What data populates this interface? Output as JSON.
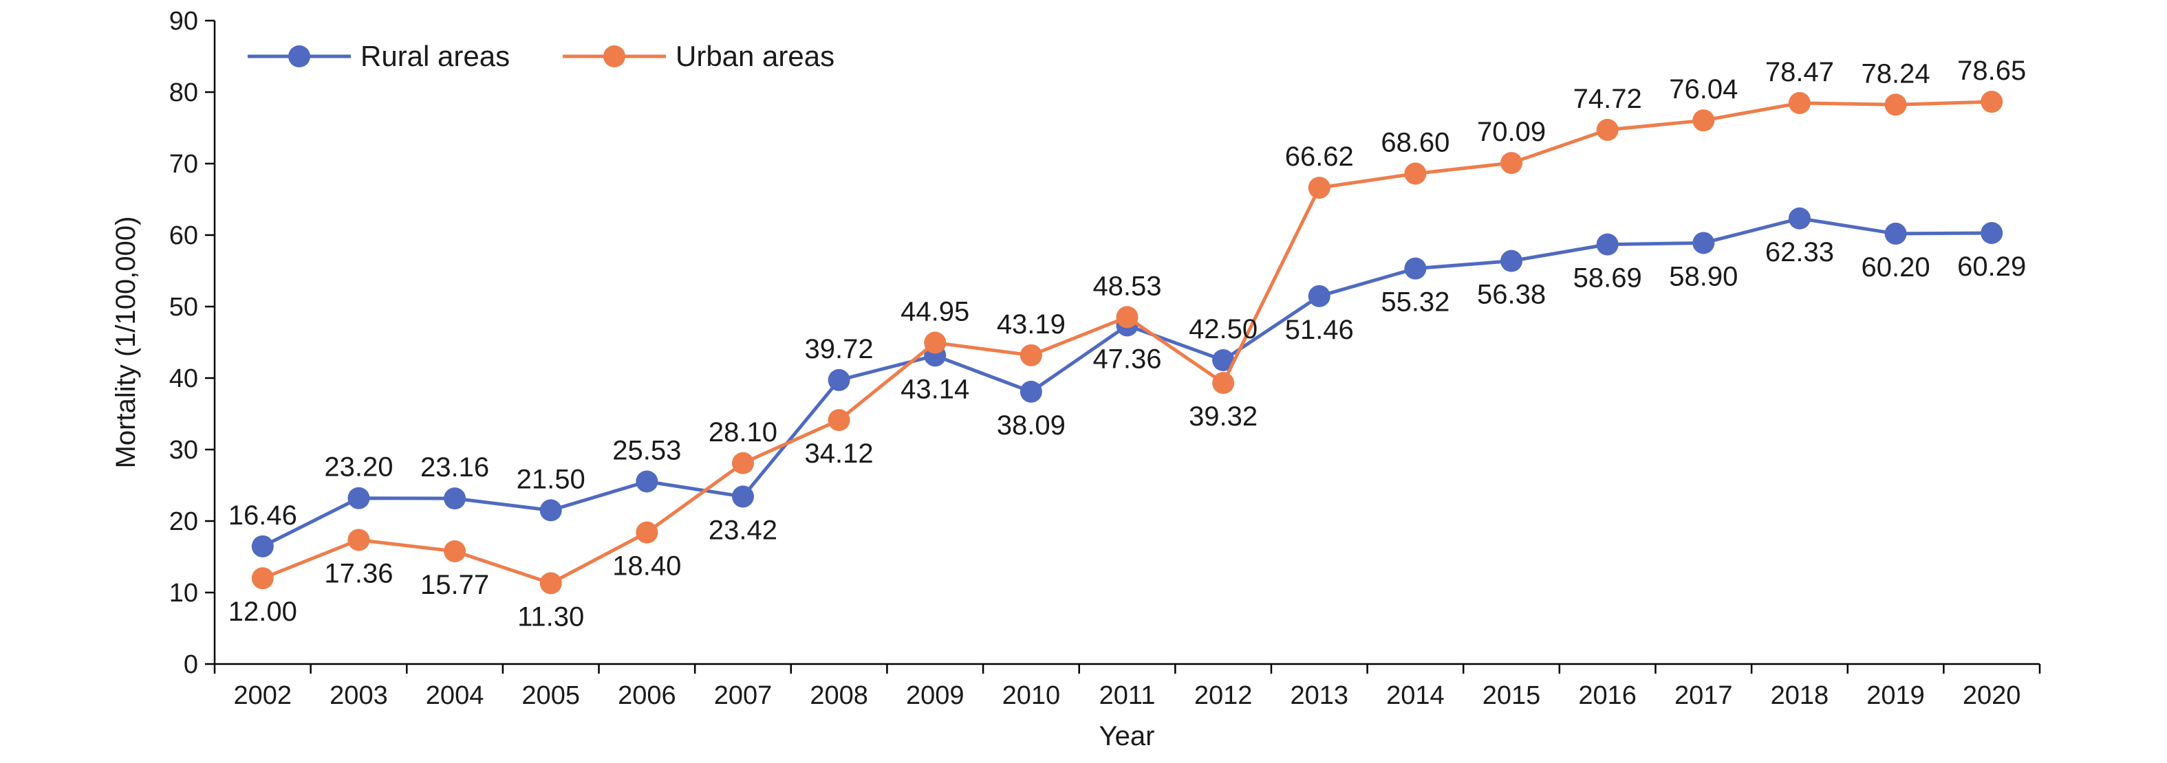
{
  "chart_data": {
    "type": "line",
    "title": "",
    "xlabel": "Year",
    "ylabel": "Mortality (1/100,000)",
    "ylim": [
      0,
      90
    ],
    "yticks": [
      0,
      10,
      20,
      30,
      40,
      50,
      60,
      70,
      80,
      90
    ],
    "grid": false,
    "legend_position": "top-left",
    "categories": [
      "2002",
      "2003",
      "2004",
      "2005",
      "2006",
      "2007",
      "2008",
      "2009",
      "2010",
      "2011",
      "2012",
      "2013",
      "2014",
      "2015",
      "2016",
      "2017",
      "2018",
      "2019",
      "2020"
    ],
    "series": [
      {
        "name": "Rural areas",
        "color": "#4f6ac0",
        "values": [
          16.46,
          23.2,
          23.16,
          21.5,
          25.53,
          23.42,
          39.72,
          43.14,
          38.09,
          47.36,
          42.5,
          51.46,
          55.32,
          56.38,
          58.69,
          58.9,
          62.33,
          60.2,
          60.29
        ],
        "labels": [
          "16.46",
          "23.20",
          "23.16",
          "21.50",
          "25.53",
          "23.42",
          "39.72",
          "43.14",
          "38.09",
          "47.36",
          "42.50",
          "51.46",
          "55.32",
          "56.38",
          "58.69",
          "58.90",
          "62.33",
          "60.20",
          "60.29"
        ],
        "label_sides": [
          "above",
          "above",
          "above",
          "above",
          "above",
          "below",
          "above",
          "below",
          "below",
          "below",
          "above",
          "below",
          "below",
          "below",
          "below",
          "below",
          "below",
          "below",
          "below"
        ]
      },
      {
        "name": "Urban areas",
        "color": "#ee7d4b",
        "values": [
          12.0,
          17.36,
          15.77,
          11.3,
          18.4,
          28.1,
          34.12,
          44.95,
          43.19,
          48.53,
          39.32,
          66.62,
          68.6,
          70.09,
          74.72,
          76.04,
          78.47,
          78.24,
          78.65
        ],
        "labels": [
          "12.00",
          "17.36",
          "15.77",
          "11.30",
          "18.40",
          "28.10",
          "34.12",
          "44.95",
          "43.19",
          "48.53",
          "39.32",
          "66.62",
          "68.60",
          "70.09",
          "74.72",
          "76.04",
          "78.47",
          "78.24",
          "78.65"
        ],
        "label_sides": [
          "below",
          "below",
          "below",
          "below",
          "below",
          "above",
          "below",
          "above",
          "above",
          "above",
          "below",
          "above",
          "above",
          "above",
          "above",
          "above",
          "above",
          "above",
          "above"
        ]
      }
    ]
  }
}
